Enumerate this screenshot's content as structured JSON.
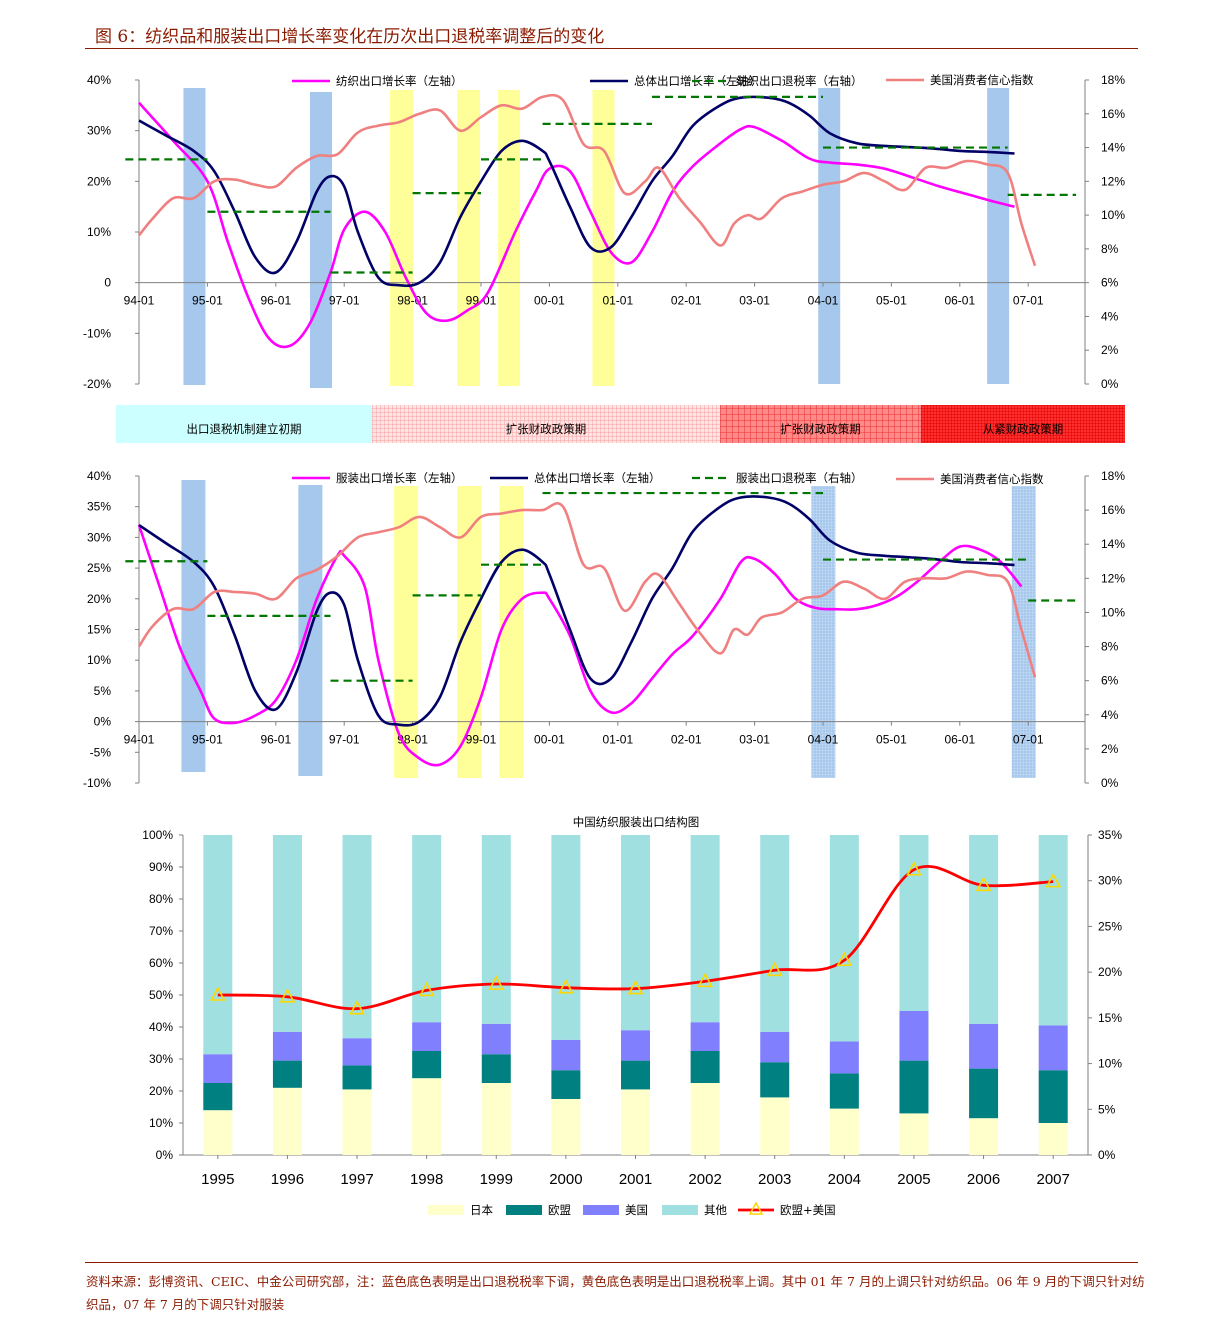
{
  "page": {
    "title": "图 6：纺织品和服装出口增长率变化在历次出口退税率调整后的变化",
    "source_note": "资料来源：彭博资讯、CEIC、中金公司研究部，注：蓝色底色表明是出口退税税率下调，黄色底色表明是出口退税税率上调。其中 01 年 7 月的上调只针对纺织品。06 年 9 月的下调只针对纺织品，07 年 7 月的下调只针对服装"
  },
  "colors": {
    "magenta": "#FF00FF",
    "navy": "#000066",
    "green": "#007700",
    "salmon": "#F08080",
    "blue_band": "#A6C8EC",
    "yellow_band": "#FFFF99",
    "japan": "#FFFFCC",
    "eu": "#008080",
    "us": "#8080FF",
    "other": "#A0E0E0",
    "eu_us": "#FF0000"
  },
  "periods": [
    {
      "label": "出口退税机制建立初期",
      "color": "#CCFFFF"
    },
    {
      "label": "扩张财政政策期",
      "color": "#FFCCCC"
    },
    {
      "label": "扩张财政政策期",
      "color": "#FF8080"
    },
    {
      "label": "从紧财政政策期",
      "color": "#FF2020"
    }
  ],
  "chart_data": [
    {
      "type": "line",
      "x_tick_labels": [
        "94-01",
        "95-01",
        "96-01",
        "97-01",
        "98-01",
        "99-01",
        "00-01",
        "01-01",
        "02-01",
        "03-01",
        "04-01",
        "05-01",
        "06-01",
        "07-01"
      ],
      "ylim": [
        -20,
        40
      ],
      "y_ticks": [
        "-20%",
        "-10%",
        "0",
        "10%",
        "20%",
        "30%",
        "40%"
      ],
      "y2lim": [
        0,
        18
      ],
      "y2_ticks": [
        "0%",
        "2%",
        "4%",
        "6%",
        "8%",
        "10%",
        "12%",
        "14%",
        "16%",
        "18%"
      ],
      "legend": [
        "纺织出口增长率（左轴）",
        "总体出口增长率（左轴）",
        "纺织出口退税率（右轴）",
        "美国消费者信心指数"
      ],
      "series": [
        {
          "name": "纺织出口增长率（左轴）",
          "axis": "left",
          "color": "#FF00FF",
          "x": [
            1994.0,
            1994.5,
            1995.0,
            1995.3,
            1995.6,
            1995.9,
            1996.2,
            1996.5,
            1996.8,
            1997.0,
            1997.3,
            1997.6,
            1997.9,
            1998.2,
            1998.5,
            1998.8,
            1999.1,
            1999.5,
            1999.8,
            2000.0,
            2000.3,
            2000.6,
            2000.9,
            2001.2,
            2001.5,
            2001.8,
            2002.1,
            2002.5,
            2002.8,
            2003.0,
            2003.4,
            2003.8,
            2004.1,
            2004.5,
            2004.9,
            2005.3,
            2005.7,
            2006.1,
            2006.5,
            2006.8
          ],
          "y": [
            35.5,
            28,
            20,
            8,
            -3,
            -11,
            -12.5,
            -8,
            2,
            10.5,
            14,
            10,
            1,
            -6,
            -7.5,
            -5.5,
            -2,
            10,
            18,
            22.5,
            22,
            14,
            6,
            4,
            10,
            18,
            23,
            27.5,
            30.3,
            30.7,
            28,
            24.5,
            23.7,
            23.3,
            22.5,
            20.8,
            19,
            17.5,
            16,
            15
          ]
        },
        {
          "name": "总体出口增长率（左轴）",
          "axis": "left",
          "color": "#000066",
          "x": [
            1994.0,
            1994.4,
            1994.8,
            1995.1,
            1995.4,
            1995.7,
            1996.0,
            1996.3,
            1996.6,
            1996.8,
            1997.0,
            1997.2,
            1997.5,
            1997.8,
            1998.1,
            1998.4,
            1998.7,
            1999.0,
            1999.3,
            1999.6,
            1999.9,
            2000.0,
            2000.3,
            2000.6,
            2000.9,
            2001.2,
            2001.5,
            2001.8,
            2002.1,
            2002.5,
            2002.8,
            2003.2,
            2003.5,
            2003.8,
            2004.1,
            2004.5,
            2004.9,
            2005.2,
            2005.6,
            2006.0,
            2006.4,
            2006.8
          ],
          "y": [
            32,
            29,
            26,
            22,
            14,
            5,
            2,
            8,
            18,
            21,
            19,
            10,
            1,
            -0.5,
            0,
            4,
            13,
            20,
            26,
            28,
            26,
            24,
            15,
            7,
            7,
            13,
            20,
            25,
            31,
            35,
            36.5,
            36.5,
            35.5,
            33,
            29.5,
            27.5,
            27,
            26.8,
            26.5,
            26,
            25.8,
            25.5
          ]
        },
        {
          "name": "纺织出口退税率（右轴）",
          "axis": "right",
          "color": "#007700",
          "dashed": true,
          "step": true,
          "x": [
            1993.8,
            1995.0,
            1995.0,
            1996.8,
            1996.8,
            1998.0,
            1998.0,
            1999.0,
            1999.0,
            1999.9,
            1999.9,
            2001.5,
            2001.5,
            2004.0,
            2004.0,
            2006.7,
            2006.7,
            2007.7
          ],
          "y": [
            13.3,
            13.3,
            10.2,
            10.2,
            6.6,
            6.6,
            11.3,
            11.3,
            13.3,
            13.3,
            15.4,
            15.4,
            17.0,
            17.0,
            14.0,
            14.0,
            11.2,
            11.2
          ]
        },
        {
          "name": "美国消费者信心指数",
          "axis": "right",
          "color": "#F08080",
          "x": [
            1994.0,
            1994.2,
            1994.5,
            1994.8,
            1995.1,
            1995.4,
            1995.7,
            1996.0,
            1996.3,
            1996.6,
            1996.9,
            1997.2,
            1997.5,
            1997.8,
            1998.1,
            1998.4,
            1998.7,
            1999.0,
            1999.3,
            1999.6,
            1999.9,
            2000.2,
            2000.5,
            2000.8,
            2001.1,
            2001.4,
            2001.6,
            2001.9,
            2002.2,
            2002.5,
            2002.7,
            2002.9,
            2003.1,
            2003.4,
            2003.7,
            2004.0,
            2004.3,
            2004.6,
            2004.9,
            2005.2,
            2005.5,
            2005.8,
            2006.1,
            2006.4,
            2006.7,
            2006.9,
            2007.1
          ],
          "y": [
            8.8,
            9.8,
            11.0,
            11.0,
            12.0,
            12.1,
            11.8,
            11.7,
            12.8,
            13.5,
            13.6,
            14.9,
            15.3,
            15.5,
            16.0,
            16.2,
            15.0,
            15.8,
            16.5,
            16.3,
            17.0,
            16.8,
            14.2,
            13.8,
            11.3,
            12.0,
            12.8,
            11.0,
            9.6,
            8.2,
            9.5,
            10.0,
            9.8,
            11.0,
            11.4,
            11.8,
            12.0,
            12.5,
            12.0,
            11.5,
            12.8,
            12.8,
            13.2,
            13.0,
            12.5,
            9.5,
            7.0
          ]
        }
      ]
    },
    {
      "type": "line",
      "x_tick_labels": [
        "94-01",
        "95-01",
        "96-01",
        "97-01",
        "98-01",
        "99-01",
        "00-01",
        "01-01",
        "02-01",
        "03-01",
        "04-01",
        "05-01",
        "06-01",
        "07-01"
      ],
      "ylim": [
        -10,
        40
      ],
      "y_ticks": [
        "-10%",
        "-5%",
        "0%",
        "5%",
        "10%",
        "15%",
        "20%",
        "25%",
        "30%",
        "35%",
        "40%"
      ],
      "y2lim": [
        0,
        18
      ],
      "y2_ticks": [
        "0%",
        "2%",
        "4%",
        "6%",
        "8%",
        "10%",
        "12%",
        "14%",
        "16%",
        "18%"
      ],
      "legend": [
        "服装出口增长率（左轴）",
        "总体出口增长率（左轴）",
        "服装出口退税率（右轴）",
        "美国消费者信心指数"
      ],
      "series": [
        {
          "name": "服装出口增长率（左轴）",
          "axis": "left",
          "color": "#FF00FF",
          "x": [
            1994.0,
            1994.3,
            1994.6,
            1994.9,
            1995.1,
            1995.4,
            1995.7,
            1996.0,
            1996.3,
            1996.6,
            1996.9,
            1997.0,
            1997.3,
            1997.5,
            1997.8,
            1998.1,
            1998.4,
            1998.7,
            1999.0,
            1999.3,
            1999.6,
            1999.9,
            2000.0,
            2000.3,
            2000.6,
            2000.9,
            2001.2,
            2001.5,
            2001.8,
            2002.1,
            2002.5,
            2002.8,
            2003.0,
            2003.3,
            2003.6,
            2003.9,
            2004.2,
            2004.5,
            2004.8,
            2005.1,
            2005.4,
            2005.7,
            2006.0,
            2006.3,
            2006.6,
            2006.9
          ],
          "y": [
            32,
            22,
            12,
            5,
            0.5,
            -0.2,
            1,
            3.5,
            10,
            20,
            27,
            27,
            22,
            10,
            -2,
            -6,
            -7,
            -4,
            4,
            15,
            20,
            21,
            20,
            14,
            5,
            1.5,
            3,
            7,
            11,
            14,
            20,
            26,
            26.5,
            24,
            20,
            18.5,
            18.3,
            18.3,
            19,
            20.5,
            23,
            26,
            28.5,
            28,
            26,
            22
          ]
        },
        {
          "name": "总体出口增长率（左轴）",
          "axis": "left",
          "color": "#000066",
          "x": [
            1994.0,
            1994.4,
            1994.8,
            1995.1,
            1995.4,
            1995.7,
            1996.0,
            1996.3,
            1996.6,
            1996.8,
            1997.0,
            1997.2,
            1997.5,
            1997.8,
            1998.1,
            1998.4,
            1998.7,
            1999.0,
            1999.3,
            1999.6,
            1999.9,
            2000.0,
            2000.3,
            2000.6,
            2000.9,
            2001.2,
            2001.5,
            2001.8,
            2002.1,
            2002.5,
            2002.8,
            2003.2,
            2003.5,
            2003.8,
            2004.1,
            2004.5,
            2004.9,
            2005.2,
            2005.6,
            2006.0,
            2006.4,
            2006.8
          ],
          "y": [
            32,
            29,
            26,
            22,
            14,
            5,
            2,
            8,
            18,
            21,
            19,
            10,
            1,
            -0.5,
            0,
            4,
            13,
            20,
            26,
            28,
            26,
            24,
            15,
            7,
            7,
            13,
            20,
            25,
            31,
            35,
            36.5,
            36.5,
            35.5,
            33,
            29.5,
            27.5,
            27,
            26.8,
            26.5,
            26,
            25.8,
            25.5
          ]
        },
        {
          "name": "服装出口退税率（右轴）",
          "axis": "right",
          "color": "#007700",
          "dashed": true,
          "step": true,
          "x": [
            1993.8,
            1995.0,
            1995.0,
            1996.8,
            1996.8,
            1998.0,
            1998.0,
            1999.0,
            1999.0,
            1999.9,
            1999.9,
            2004.0,
            2004.0,
            2007.0,
            2007.0,
            2007.7
          ],
          "y": [
            13,
            13,
            9.8,
            9.8,
            6,
            6,
            11,
            11,
            12.8,
            12.8,
            17,
            17,
            13.1,
            13.1,
            10.7,
            10.7
          ]
        },
        {
          "name": "美国消费者信心指数",
          "axis": "right",
          "color": "#F08080",
          "x": [
            1994.0,
            1994.2,
            1994.5,
            1994.8,
            1995.1,
            1995.4,
            1995.7,
            1996.0,
            1996.3,
            1996.6,
            1996.9,
            1997.2,
            1997.5,
            1997.8,
            1998.1,
            1998.4,
            1998.7,
            1999.0,
            1999.3,
            1999.6,
            1999.9,
            2000.2,
            2000.5,
            2000.8,
            2001.1,
            2001.4,
            2001.6,
            2001.9,
            2002.2,
            2002.5,
            2002.7,
            2002.9,
            2003.1,
            2003.4,
            2003.7,
            2004.0,
            2004.3,
            2004.6,
            2004.9,
            2005.2,
            2005.5,
            2005.8,
            2006.1,
            2006.4,
            2006.7,
            2006.9,
            2007.1
          ],
          "y": [
            8.0,
            9.2,
            10.2,
            10.2,
            11.2,
            11.2,
            11.1,
            10.8,
            12.0,
            12.5,
            13.3,
            14.4,
            14.7,
            15.0,
            15.6,
            15.0,
            14.4,
            15.6,
            15.8,
            16.0,
            16.0,
            16.2,
            12.8,
            12.6,
            10.1,
            11.8,
            12.2,
            10.5,
            8.8,
            7.6,
            9.0,
            8.7,
            9.7,
            10.0,
            10.8,
            11.0,
            11.8,
            11.4,
            10.8,
            11.8,
            12.0,
            12.0,
            12.4,
            12.2,
            11.8,
            9.0,
            6.2
          ]
        }
      ]
    },
    {
      "type": "bar",
      "stacked": true,
      "title": "中国纺织服装出口结构图",
      "categories": [
        "1995",
        "1996",
        "1997",
        "1998",
        "1999",
        "2000",
        "2001",
        "2002",
        "2003",
        "2004",
        "2005",
        "2006",
        "2007"
      ],
      "ylim": [
        0,
        100
      ],
      "y_ticks": [
        "0%",
        "10%",
        "20%",
        "30%",
        "40%",
        "50%",
        "60%",
        "70%",
        "80%",
        "90%",
        "100%"
      ],
      "y2lim": [
        0,
        35
      ],
      "y2_ticks": [
        "0%",
        "5%",
        "10%",
        "15%",
        "20%",
        "25%",
        "30%",
        "35%"
      ],
      "legend": [
        "日本",
        "欧盟",
        "美国",
        "其他",
        "欧盟+美国"
      ],
      "series": [
        {
          "name": "日本",
          "color": "#FFFFCC",
          "values": [
            14,
            21,
            20.5,
            24,
            22.5,
            17.5,
            20.5,
            22.5,
            18,
            14.5,
            13,
            11.5,
            10
          ]
        },
        {
          "name": "欧盟",
          "color": "#008080",
          "values": [
            8.5,
            8.5,
            7.5,
            8.5,
            9,
            9,
            9,
            10,
            11,
            11,
            16.5,
            15.5,
            16.5
          ]
        },
        {
          "name": "美国",
          "color": "#8080FF",
          "values": [
            9,
            9,
            8.5,
            9,
            9.5,
            9.5,
            9.5,
            9,
            9.5,
            10,
            15.5,
            14,
            14
          ]
        },
        {
          "name": "其他",
          "color": "#A0E0E0",
          "values": [
            68.5,
            61.5,
            63.5,
            58.5,
            59,
            64,
            61,
            58.5,
            61.5,
            64.5,
            55,
            59,
            59.5
          ]
        },
        {
          "name": "欧盟+美国",
          "color": "#FF0000",
          "axis": "right",
          "type": "line",
          "values": [
            17.5,
            17.3,
            16,
            18,
            18.7,
            18.3,
            18.2,
            19,
            20.2,
            21.3,
            31.2,
            29.5,
            29.9
          ]
        }
      ]
    }
  ]
}
